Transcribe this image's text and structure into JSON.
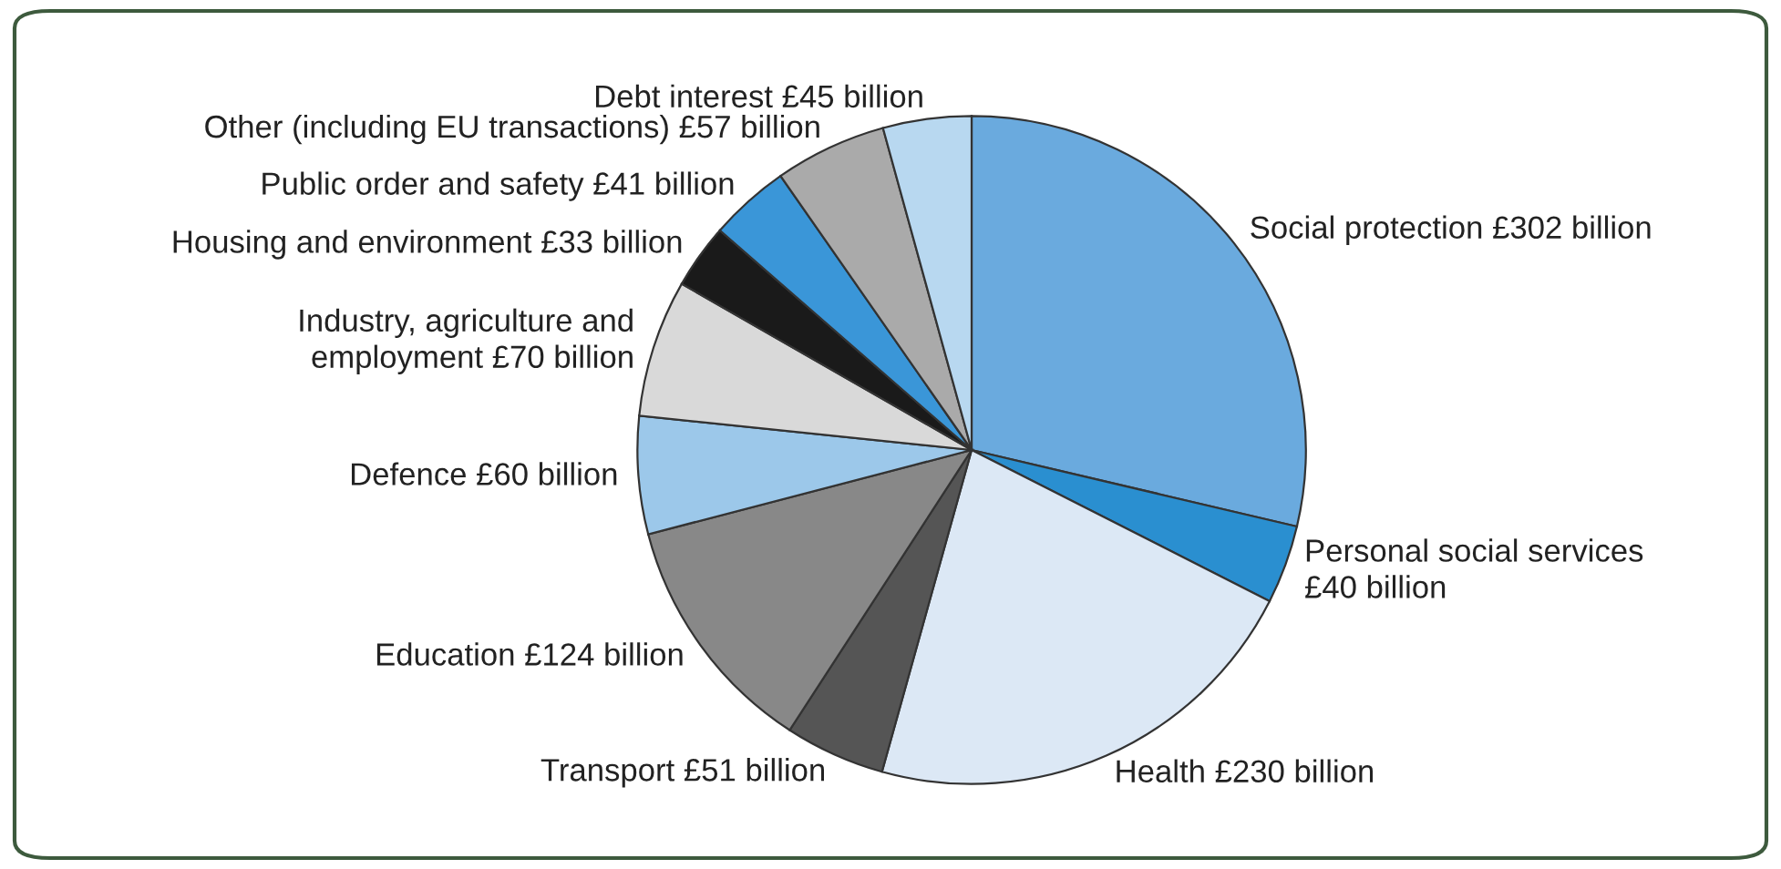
{
  "chart_data": {
    "type": "pie",
    "categories": [
      "Social protection £302 billion",
      "Personal social services\n£40 billion",
      "Health £230 billion",
      "Transport £51 billion",
      "Education £124 billion",
      "Defence £60 billion",
      "Industry, agriculture and\nemployment £70 billion",
      "Housing and environment £33 billion",
      "Public order and safety £41 billion",
      "Other (including EU transactions) £57 billion",
      "Debt interest £45 billion"
    ],
    "values": [
      302,
      40,
      230,
      51,
      124,
      60,
      70,
      33,
      41,
      57,
      45
    ],
    "colors": [
      "#6aaade",
      "#2a8fd0",
      "#dce8f5",
      "#555555",
      "#888888",
      "#9cc8ea",
      "#d9d9d9",
      "#1a1a1a",
      "#3a96d8",
      "#aaaaaa",
      "#b8d8f0"
    ]
  }
}
